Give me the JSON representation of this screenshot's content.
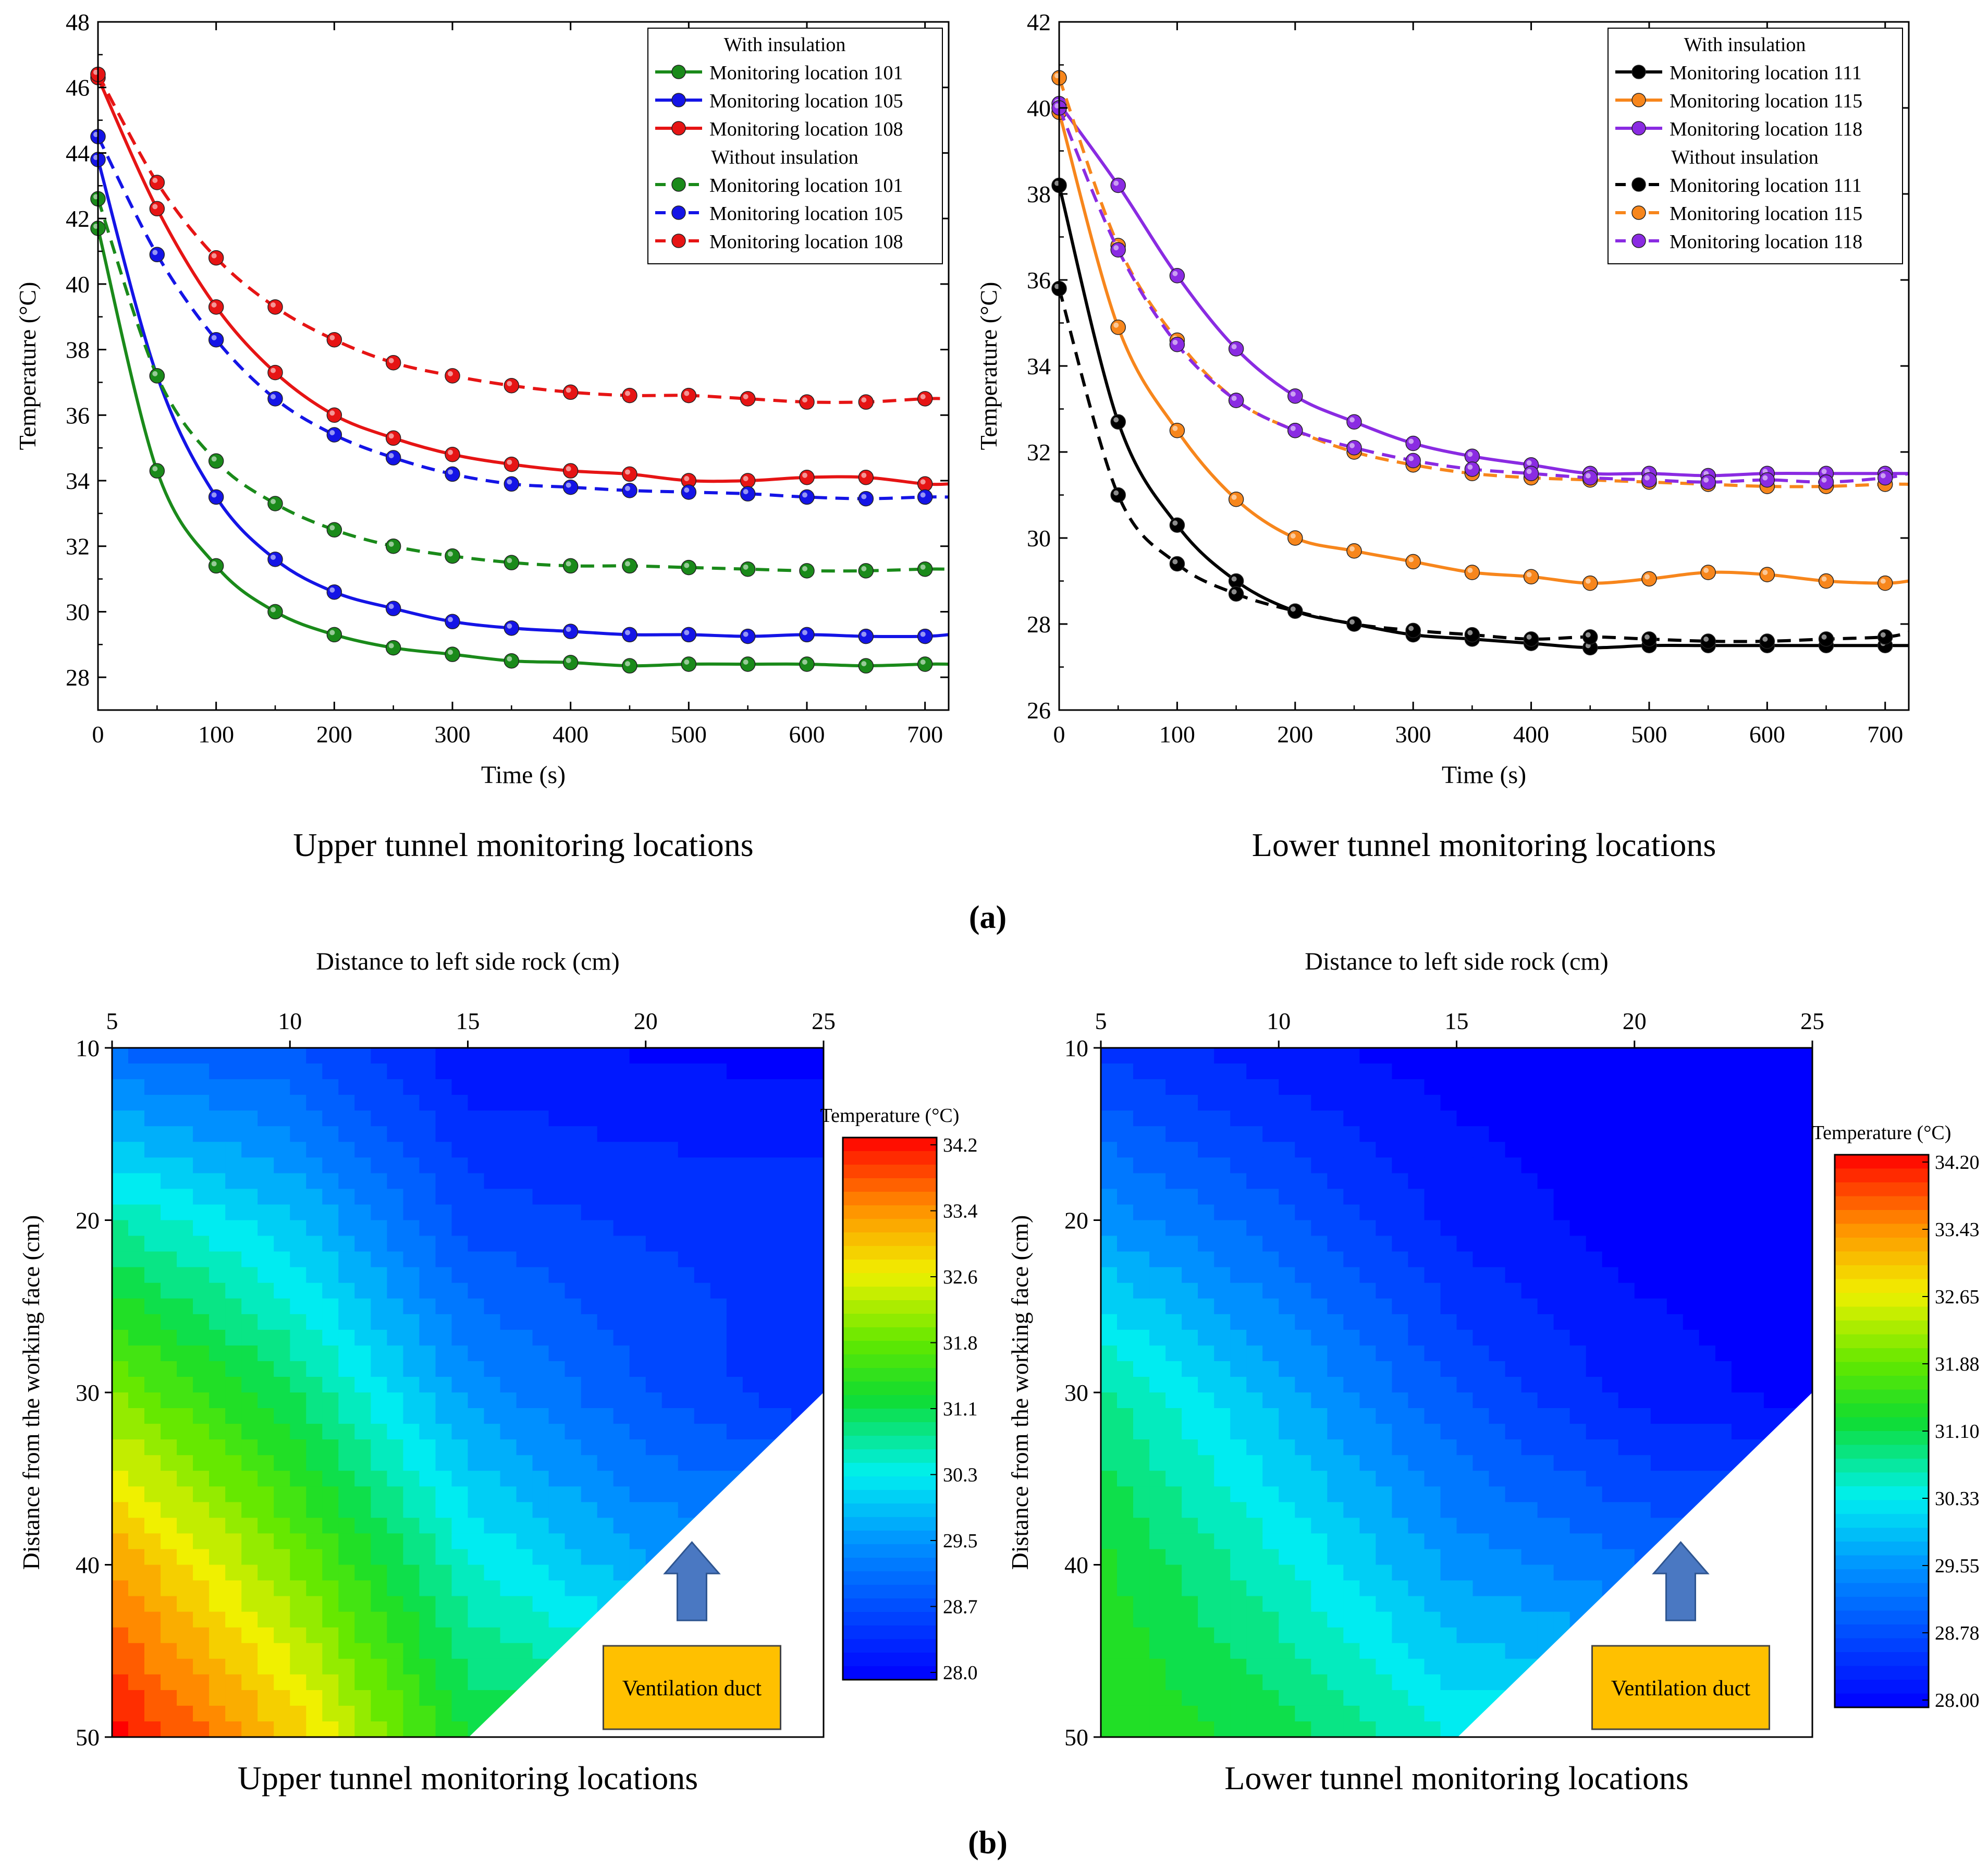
{
  "panel_labels": {
    "a": "(a)",
    "b": "(b)"
  },
  "chart_data": [
    {
      "type": "line",
      "id": "upper-line",
      "caption": "Upper tunnel monitoring locations",
      "xlabel": "Time (s)",
      "ylabel": "Temperature (°C)",
      "xlim": [
        0,
        720
      ],
      "ylim": [
        27,
        48
      ],
      "xticks": [
        0,
        100,
        200,
        300,
        400,
        500,
        600,
        700
      ],
      "yticks": [
        28,
        30,
        32,
        34,
        36,
        38,
        40,
        42,
        44,
        46,
        48
      ],
      "legend": {
        "position": "top-right",
        "groups": [
          {
            "title": "With insulation",
            "entries": [
              "Monitoring location 101",
              "Monitoring location 105",
              "Monitoring location 108"
            ]
          },
          {
            "title": "Without insulation",
            "entries": [
              "Monitoring location 101",
              "Monitoring location 105",
              "Monitoring location 108"
            ]
          }
        ]
      },
      "x": [
        0,
        50,
        100,
        150,
        200,
        250,
        300,
        350,
        400,
        450,
        500,
        550,
        600,
        650,
        700,
        720
      ],
      "series": [
        {
          "name": "Monitoring location 101",
          "group": "With insulation",
          "color": "#1a8a1a",
          "dash": false,
          "values": [
            41.7,
            34.3,
            31.4,
            30.0,
            29.3,
            28.9,
            28.7,
            28.5,
            28.45,
            28.35,
            28.4,
            28.4,
            28.4,
            28.35,
            28.4,
            28.4
          ]
        },
        {
          "name": "Monitoring location 105",
          "group": "With insulation",
          "color": "#1414e6",
          "dash": false,
          "values": [
            43.8,
            37.2,
            33.5,
            31.6,
            30.6,
            30.1,
            29.7,
            29.5,
            29.4,
            29.3,
            29.3,
            29.25,
            29.3,
            29.25,
            29.25,
            29.3
          ]
        },
        {
          "name": "Monitoring location 108",
          "group": "With insulation",
          "color": "#e61414",
          "dash": false,
          "values": [
            46.3,
            42.3,
            39.3,
            37.3,
            36.0,
            35.3,
            34.8,
            34.5,
            34.3,
            34.2,
            34.0,
            34.0,
            34.1,
            34.1,
            33.9,
            33.9
          ]
        },
        {
          "name": "Monitoring location 101",
          "group": "Without insulation",
          "color": "#1a8a1a",
          "dash": true,
          "values": [
            42.6,
            37.2,
            34.6,
            33.3,
            32.5,
            32.0,
            31.7,
            31.5,
            31.4,
            31.4,
            31.35,
            31.3,
            31.25,
            31.25,
            31.3,
            31.3
          ]
        },
        {
          "name": "Monitoring location 105",
          "group": "Without insulation",
          "color": "#1414e6",
          "dash": true,
          "values": [
            44.5,
            40.9,
            38.3,
            36.5,
            35.4,
            34.7,
            34.2,
            33.9,
            33.8,
            33.7,
            33.65,
            33.6,
            33.5,
            33.45,
            33.5,
            33.5
          ]
        },
        {
          "name": "Monitoring location 108",
          "group": "Without insulation",
          "color": "#e61414",
          "dash": true,
          "values": [
            46.4,
            43.1,
            40.8,
            39.3,
            38.3,
            37.6,
            37.2,
            36.9,
            36.7,
            36.6,
            36.6,
            36.5,
            36.4,
            36.4,
            36.5,
            36.5
          ]
        }
      ]
    },
    {
      "type": "line",
      "id": "lower-line",
      "caption": "Lower tunnel monitoring locations",
      "xlabel": "Time (s)",
      "ylabel": "Temperature (°C)",
      "xlim": [
        0,
        720
      ],
      "ylim": [
        26,
        42
      ],
      "xticks": [
        0,
        100,
        200,
        300,
        400,
        500,
        600,
        700
      ],
      "yticks": [
        26,
        28,
        30,
        32,
        34,
        36,
        38,
        40,
        42
      ],
      "legend": {
        "position": "top-right",
        "groups": [
          {
            "title": "With insulation",
            "entries": [
              "Monitoring location 111",
              "Monitoring location 115",
              "Monitoring location 118"
            ]
          },
          {
            "title": "Without insulation",
            "entries": [
              "Monitoring location 111",
              "Monitoring location 115",
              "Monitoring location 118"
            ]
          }
        ]
      },
      "x": [
        0,
        50,
        100,
        150,
        200,
        250,
        300,
        350,
        400,
        450,
        500,
        550,
        600,
        650,
        700,
        720
      ],
      "series": [
        {
          "name": "Monitoring location 111",
          "group": "With insulation",
          "color": "#000000",
          "dash": false,
          "values": [
            38.2,
            32.7,
            30.3,
            29.0,
            28.3,
            28.0,
            27.75,
            27.65,
            27.55,
            27.45,
            27.5,
            27.5,
            27.5,
            27.5,
            27.5,
            27.5
          ]
        },
        {
          "name": "Monitoring location 115",
          "group": "With insulation",
          "color": "#f7861c",
          "dash": false,
          "values": [
            39.9,
            34.9,
            32.5,
            30.9,
            30.0,
            29.7,
            29.45,
            29.2,
            29.1,
            28.95,
            29.05,
            29.2,
            29.15,
            29.0,
            28.95,
            29.0
          ]
        },
        {
          "name": "Monitoring location 118",
          "group": "With insulation",
          "color": "#8a2be2",
          "dash": false,
          "values": [
            40.1,
            38.2,
            36.1,
            34.4,
            33.3,
            32.7,
            32.2,
            31.9,
            31.7,
            31.5,
            31.5,
            31.45,
            31.5,
            31.5,
            31.5,
            31.5
          ]
        },
        {
          "name": "Monitoring location 111",
          "group": "Without insulation",
          "color": "#000000",
          "dash": true,
          "values": [
            35.8,
            31.0,
            29.4,
            28.7,
            28.3,
            28.0,
            27.85,
            27.75,
            27.65,
            27.7,
            27.65,
            27.6,
            27.6,
            27.65,
            27.7,
            27.8
          ]
        },
        {
          "name": "Monitoring location 115",
          "group": "Without insulation",
          "color": "#f7861c",
          "dash": true,
          "values": [
            40.7,
            36.8,
            34.6,
            33.2,
            32.5,
            32.0,
            31.7,
            31.5,
            31.4,
            31.35,
            31.3,
            31.25,
            31.2,
            31.2,
            31.25,
            31.25
          ]
        },
        {
          "name": "Monitoring location 118",
          "group": "Without insulation",
          "color": "#8a2be2",
          "dash": true,
          "values": [
            40.0,
            36.7,
            34.5,
            33.2,
            32.5,
            32.1,
            31.8,
            31.6,
            31.5,
            31.4,
            31.35,
            31.3,
            31.35,
            31.3,
            31.4,
            31.5
          ]
        }
      ]
    },
    {
      "type": "heatmap",
      "id": "upper-contour",
      "caption": "Upper tunnel monitoring locations",
      "xlabel": "Distance to left side rock (cm)",
      "ylabel": "Distance from the working face (cm)",
      "xlim": [
        5,
        25
      ],
      "ylim": [
        10,
        50
      ],
      "xticks": [
        5,
        10,
        15,
        20,
        25
      ],
      "yticks": [
        10,
        20,
        30,
        40,
        50
      ],
      "colorbar": {
        "title": "Temperature (°C)",
        "min": 28.0,
        "max": 34.2,
        "ticks": [
          "34.2",
          "33.4",
          "32.6",
          "31.8",
          "31.1",
          "30.3",
          "29.5",
          "28.7",
          "28.0"
        ]
      },
      "excluded_region": "triangle bottom-right (ventilation duct side)",
      "annotation": "Ventilation duct",
      "x": [
        5,
        10,
        15,
        20,
        25
      ],
      "y": [
        10,
        20,
        30,
        40,
        50
      ],
      "z": [
        [
          29.1,
          28.9,
          28.2,
          28.1,
          28.0
        ],
        [
          30.7,
          30.0,
          28.8,
          28.6,
          28.6
        ],
        [
          32.0,
          31.0,
          29.6,
          28.9,
          28.4
        ],
        [
          33.3,
          32.0,
          30.5,
          29.7,
          null
        ],
        [
          34.2,
          33.0,
          31.2,
          null,
          null
        ]
      ]
    },
    {
      "type": "heatmap",
      "id": "lower-contour",
      "caption": "Lower tunnel monitoring locations",
      "xlabel": "Distance to left side rock (cm)",
      "ylabel": "Distance from the working face (cm)",
      "xlim": [
        5,
        25
      ],
      "ylim": [
        10,
        50
      ],
      "xticks": [
        5,
        10,
        15,
        20,
        25
      ],
      "yticks": [
        10,
        20,
        30,
        40,
        50
      ],
      "colorbar": {
        "title": "Temperature (°C)",
        "min": 28.0,
        "max": 34.2,
        "ticks": [
          "34.20",
          "33.43",
          "32.65",
          "31.88",
          "31.10",
          "30.33",
          "29.55",
          "28.78",
          "28.00"
        ]
      },
      "excluded_region": "triangle bottom-right (ventilation duct side)",
      "annotation": "Ventilation duct",
      "x": [
        5,
        10,
        15,
        20,
        25
      ],
      "y": [
        10,
        20,
        30,
        40,
        50
      ],
      "z": [
        [
          28.6,
          28.2,
          28.0,
          28.0,
          28.0
        ],
        [
          29.6,
          29.0,
          28.3,
          28.0,
          28.0
        ],
        [
          30.8,
          29.8,
          28.9,
          28.3,
          28.0
        ],
        [
          31.3,
          30.5,
          29.6,
          29.2,
          null
        ],
        [
          31.5,
          31.1,
          30.4,
          null,
          null
        ]
      ]
    }
  ]
}
